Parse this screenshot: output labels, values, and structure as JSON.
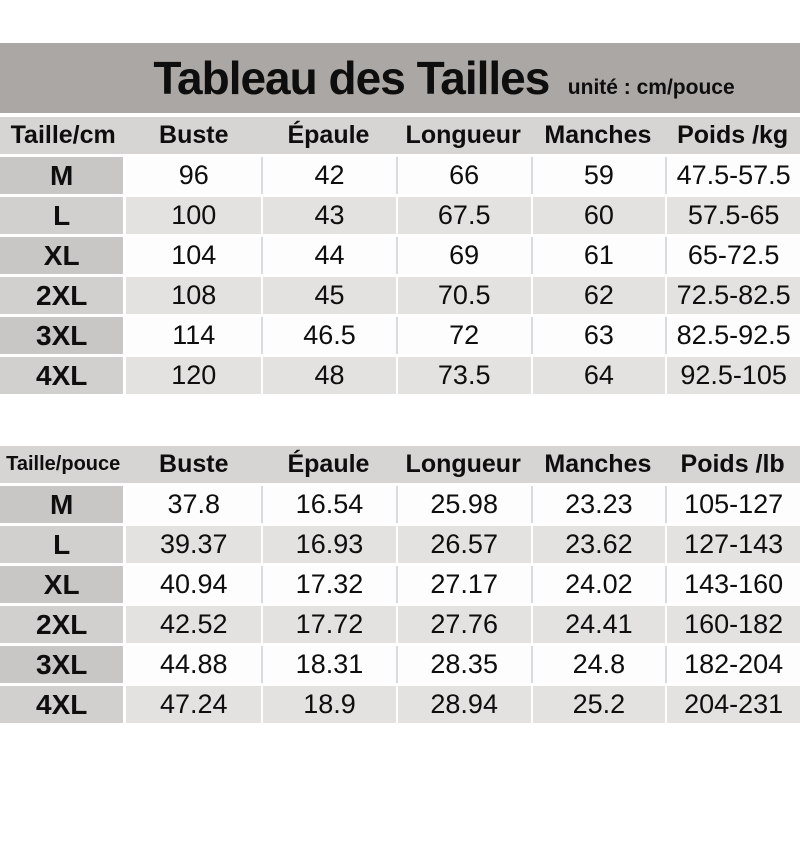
{
  "page": {
    "title": "Tableau des Tailles",
    "unit_note": "unité : cm/pouce"
  },
  "colors": {
    "title_band_bg": "#aba7a4",
    "header_row_bg": "#d7d5d3",
    "label_cell_bg": "#c9c7c5",
    "stripe_row_bg": "#e4e2e0",
    "white_row_bg": "#fdfdfd",
    "text": "#0e0e0e"
  },
  "table_cm": {
    "headers": [
      "Taille/cm",
      "Buste",
      "Épaule",
      "Longueur",
      "Manches",
      "Poids /kg"
    ],
    "rows": [
      {
        "label": "M",
        "values": [
          "96",
          "42",
          "66",
          "59",
          "47.5-57.5"
        ]
      },
      {
        "label": "L",
        "values": [
          "100",
          "43",
          "67.5",
          "60",
          "57.5-65"
        ]
      },
      {
        "label": "XL",
        "values": [
          "104",
          "44",
          "69",
          "61",
          "65-72.5"
        ]
      },
      {
        "label": "2XL",
        "values": [
          "108",
          "45",
          "70.5",
          "62",
          "72.5-82.5"
        ]
      },
      {
        "label": "3XL",
        "values": [
          "114",
          "46.5",
          "72",
          "63",
          "82.5-92.5"
        ]
      },
      {
        "label": "4XL",
        "values": [
          "120",
          "48",
          "73.5",
          "64",
          "92.5-105"
        ]
      }
    ]
  },
  "table_pouce": {
    "headers": [
      "Taille/pouce",
      "Buste",
      "Épaule",
      "Longueur",
      "Manches",
      "Poids /lb"
    ],
    "rows": [
      {
        "label": "M",
        "values": [
          "37.8",
          "16.54",
          "25.98",
          "23.23",
          "105-127"
        ]
      },
      {
        "label": "L",
        "values": [
          "39.37",
          "16.93",
          "26.57",
          "23.62",
          "127-143"
        ]
      },
      {
        "label": "XL",
        "values": [
          "40.94",
          "17.32",
          "27.17",
          "24.02",
          "143-160"
        ]
      },
      {
        "label": "2XL",
        "values": [
          "42.52",
          "17.72",
          "27.76",
          "24.41",
          "160-182"
        ]
      },
      {
        "label": "3XL",
        "values": [
          "44.88",
          "18.31",
          "28.35",
          "24.8",
          "182-204"
        ]
      },
      {
        "label": "4XL",
        "values": [
          "47.24",
          "18.9",
          "28.94",
          "25.2",
          "204-231"
        ]
      }
    ]
  },
  "chart_data": [
    {
      "type": "table",
      "title": "Tableau des Tailles (cm)",
      "columns": [
        "Taille/cm",
        "Buste",
        "Épaule",
        "Longueur",
        "Manches",
        "Poids /kg"
      ],
      "rows": [
        [
          "M",
          96,
          42,
          66,
          59,
          "47.5-57.5"
        ],
        [
          "L",
          100,
          43,
          67.5,
          60,
          "57.5-65"
        ],
        [
          "XL",
          104,
          44,
          69,
          61,
          "65-72.5"
        ],
        [
          "2XL",
          108,
          45,
          70.5,
          62,
          "72.5-82.5"
        ],
        [
          "3XL",
          114,
          46.5,
          72,
          63,
          "82.5-92.5"
        ],
        [
          "4XL",
          120,
          48,
          73.5,
          64,
          "92.5-105"
        ]
      ]
    },
    {
      "type": "table",
      "title": "Tableau des Tailles (pouce)",
      "columns": [
        "Taille/pouce",
        "Buste",
        "Épaule",
        "Longueur",
        "Manches",
        "Poids /lb"
      ],
      "rows": [
        [
          "M",
          37.8,
          16.54,
          25.98,
          23.23,
          "105-127"
        ],
        [
          "L",
          39.37,
          16.93,
          26.57,
          23.62,
          "127-143"
        ],
        [
          "XL",
          40.94,
          17.32,
          27.17,
          24.02,
          "143-160"
        ],
        [
          "2XL",
          42.52,
          17.72,
          27.76,
          24.41,
          "160-182"
        ],
        [
          "3XL",
          44.88,
          18.31,
          28.35,
          24.8,
          "182-204"
        ],
        [
          "4XL",
          47.24,
          18.9,
          28.94,
          25.2,
          "204-231"
        ]
      ]
    }
  ]
}
